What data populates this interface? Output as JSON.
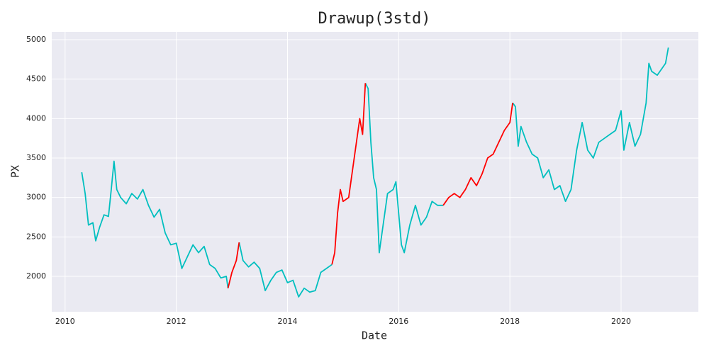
{
  "chart_data": {
    "type": "line",
    "title": "Drawup(3std)",
    "x_label": "Date",
    "y_label": "PX",
    "x": [
      2010.3,
      2010.36,
      2010.42,
      2010.5,
      2010.55,
      2010.62,
      2010.7,
      2010.78,
      2010.83,
      2010.88,
      2010.93,
      2011.0,
      2011.1,
      2011.2,
      2011.3,
      2011.4,
      2011.5,
      2011.6,
      2011.7,
      2011.8,
      2011.9,
      2012.0,
      2012.1,
      2012.2,
      2012.3,
      2012.4,
      2012.5,
      2012.6,
      2012.7,
      2012.8,
      2012.9,
      2012.93,
      2013.0,
      2013.08,
      2013.13,
      2013.2,
      2013.3,
      2013.4,
      2013.5,
      2013.6,
      2013.7,
      2013.8,
      2013.9,
      2014.0,
      2014.1,
      2014.2,
      2014.3,
      2014.4,
      2014.5,
      2014.6,
      2014.7,
      2014.8,
      2014.85,
      2014.9,
      2014.95,
      2015.0,
      2015.1,
      2015.2,
      2015.3,
      2015.35,
      2015.4,
      2015.45,
      2015.5,
      2015.55,
      2015.6,
      2015.65,
      2015.7,
      2015.8,
      2015.9,
      2015.95,
      2016.0,
      2016.05,
      2016.1,
      2016.2,
      2016.3,
      2016.4,
      2016.5,
      2016.6,
      2016.7,
      2016.8,
      2016.9,
      2017.0,
      2017.1,
      2017.2,
      2017.3,
      2017.4,
      2017.5,
      2017.6,
      2017.7,
      2017.8,
      2017.9,
      2018.0,
      2018.05,
      2018.1,
      2018.15,
      2018.2,
      2018.3,
      2018.4,
      2018.5,
      2018.6,
      2018.7,
      2018.8,
      2018.9,
      2019.0,
      2019.1,
      2019.2,
      2019.3,
      2019.4,
      2019.5,
      2019.6,
      2019.7,
      2019.8,
      2019.9,
      2020.0,
      2020.05,
      2020.15,
      2020.25,
      2020.35,
      2020.45,
      2020.5,
      2020.55,
      2020.65,
      2020.75,
      2020.8,
      2020.85
    ],
    "series": [
      {
        "color": "#00bfbf",
        "values": [
          3320,
          3050,
          2650,
          2680,
          2450,
          2620,
          2780,
          2760,
          3100,
          3460,
          3100,
          3000,
          2920,
          3050,
          2980,
          3100,
          2900,
          2750,
          2850,
          2550,
          2400,
          2420,
          2100,
          2250,
          2400,
          2300,
          2380,
          2150,
          2100,
          1980,
          2000,
          1850,
          null,
          null,
          2430,
          2200,
          2120,
          2180,
          2100,
          1820,
          1950,
          2050,
          2080,
          1920,
          1950,
          1740,
          1850,
          1800,
          1820,
          2050,
          2100,
          2150,
          null,
          null,
          null,
          null,
          null,
          null,
          null,
          null,
          4450,
          4380,
          3700,
          3250,
          3100,
          2300,
          2550,
          3050,
          3100,
          3200,
          2800,
          2400,
          2300,
          2650,
          2900,
          2650,
          2750,
          2950,
          2900,
          2900,
          null,
          null,
          null,
          null,
          null,
          null,
          null,
          null,
          null,
          null,
          null,
          null,
          4200,
          4150,
          3650,
          3900,
          3700,
          3550,
          3500,
          3250,
          3350,
          3100,
          3150,
          2950,
          3100,
          3600,
          3950,
          3600,
          3500,
          3700,
          3750,
          3800,
          3850,
          4100,
          3600,
          3950,
          3650,
          3800,
          4200,
          4700,
          4600,
          4550,
          4650,
          4700,
          4900
        ]
      },
      {
        "color": "#ff0000",
        "values": [
          null,
          null,
          null,
          null,
          null,
          null,
          null,
          null,
          null,
          null,
          null,
          null,
          null,
          null,
          null,
          null,
          null,
          null,
          null,
          null,
          null,
          null,
          null,
          null,
          null,
          null,
          null,
          null,
          null,
          null,
          null,
          1850,
          2050,
          2200,
          2430,
          null,
          null,
          null,
          null,
          null,
          null,
          null,
          null,
          null,
          null,
          null,
          null,
          null,
          null,
          null,
          null,
          2150,
          2300,
          2800,
          3100,
          2950,
          3000,
          3500,
          4000,
          3800,
          4450,
          null,
          null,
          null,
          null,
          null,
          null,
          null,
          null,
          null,
          null,
          null,
          null,
          null,
          null,
          null,
          null,
          null,
          null,
          2900,
          3000,
          3050,
          3000,
          3100,
          3250,
          3150,
          3300,
          3500,
          3550,
          3700,
          3850,
          3950,
          4200,
          null,
          null,
          null,
          null,
          null,
          null,
          null,
          null,
          null,
          null,
          null,
          null,
          null,
          null,
          null,
          null,
          null,
          null,
          null,
          null,
          null,
          null,
          null,
          null,
          null,
          null,
          null,
          null,
          null,
          null,
          null,
          null
        ]
      }
    ],
    "xlim": [
      2009.76,
      2021.39
    ],
    "xticks": [
      2010,
      2012,
      2014,
      2016,
      2018,
      2020
    ],
    "ylim": [
      1551,
      5099
    ],
    "yticks": [
      2000,
      2500,
      3000,
      3500,
      4000,
      4500,
      5000
    ],
    "grid": true
  }
}
